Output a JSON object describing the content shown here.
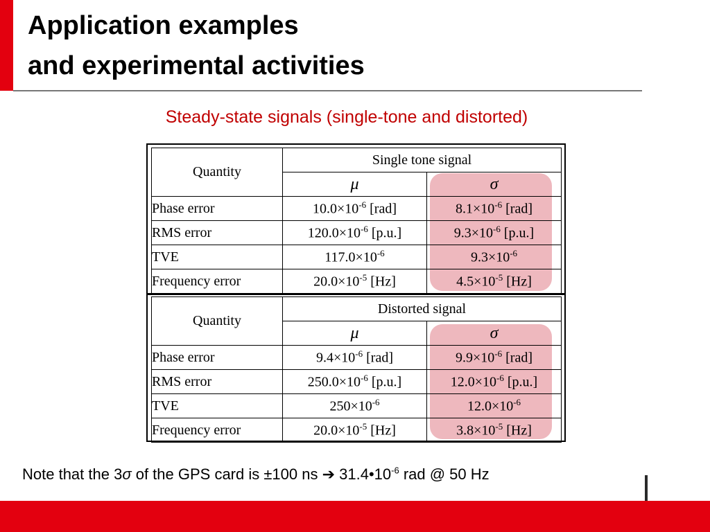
{
  "slide": {
    "title_line1": "Application examples",
    "title_line2": "and experimental activities",
    "subtitle": "Steady-state signals (single-tone and distorted)"
  },
  "colors": {
    "accent_red": "#e3000f",
    "subtitle_red": "#c00000",
    "highlight_pink": "#e8a0a8"
  },
  "tables": [
    {
      "quantity_label": "Quantity",
      "signal_header": "Single tone signal",
      "mu_symbol": "μ",
      "sigma_symbol": "σ",
      "rows": [
        {
          "label": "Phase error",
          "mu": "10.0×10-6 [rad]",
          "sigma": "8.1×10-6 [rad]"
        },
        {
          "label": "RMS error",
          "mu": "120.0×10-6 [p.u.]",
          "sigma": "9.3×10-6 [p.u.]"
        },
        {
          "label": "TVE",
          "mu": "117.0×10-6",
          "sigma": "9.3×10-6"
        },
        {
          "label": "Frequency error",
          "mu": "20.0×10-5 [Hz]",
          "sigma": "4.5×10-5 [Hz]"
        }
      ]
    },
    {
      "quantity_label": "Quantity",
      "signal_header": "Distorted signal",
      "mu_symbol": "μ",
      "sigma_symbol": "σ",
      "rows": [
        {
          "label": "Phase error",
          "mu": "9.4×10-6 [rad]",
          "sigma": "9.9×10-6 [rad]"
        },
        {
          "label": "RMS error",
          "mu": "250.0×10-6 [p.u.]",
          "sigma": "12.0×10-6 [p.u.]"
        },
        {
          "label": "TVE",
          "mu": "250×10-6",
          "sigma": "12.0×10-6"
        },
        {
          "label": "Frequency error",
          "mu": "20.0×10-5 [Hz]",
          "sigma": "3.8×10-5 [Hz]"
        }
      ]
    }
  ],
  "note": {
    "text_a": "Note that the 3",
    "sigma": "σ",
    "text_b": " of the GPS card is ±100 ns ",
    "arrow": "➔",
    "text_c": " 31.4•10",
    "exp": "-6",
    "text_d": " rad @ 50 Hz"
  }
}
